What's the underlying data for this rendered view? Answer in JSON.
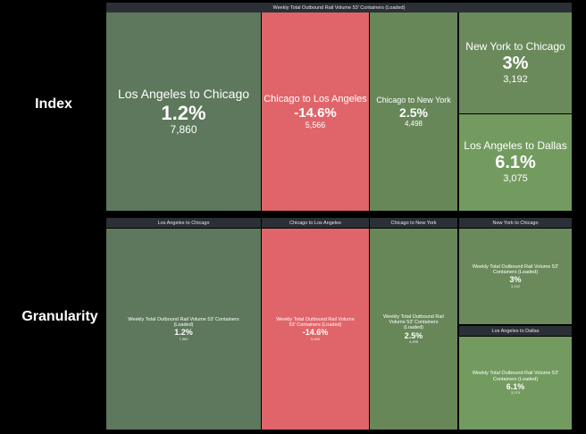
{
  "index": {
    "label": "Index",
    "title": "Weekly Total Outbound Rail Volume 53' Containers (Loaded)",
    "tiles": [
      {
        "name": "Los Angeles to Chicago",
        "change": "1.2%",
        "volume": "7,860"
      },
      {
        "name": "Chicago to Los Angeles",
        "change": "-14.6%",
        "volume": "5,566"
      },
      {
        "name": "Chicago to New York",
        "change": "2.5%",
        "volume": "4,498"
      },
      {
        "name": "New York to Chicago",
        "change": "3%",
        "volume": "3,192"
      },
      {
        "name": "Los Angeles to Dallas",
        "change": "6.1%",
        "volume": "3,075"
      }
    ]
  },
  "granularity": {
    "label": "Granularity",
    "tiles": [
      {
        "name": "Los Angeles to Chicago",
        "metric": "Weekly Total Outbound Rail Volume 53' Containers (Loaded)",
        "change": "1.2%",
        "volume": "7,860"
      },
      {
        "name": "Chicago to Los Angeles",
        "metric": "Weekly Total Outbound Rail Volume 53' Containers (Loaded)",
        "change": "-14.6%",
        "volume": "5,566"
      },
      {
        "name": "Chicago to New York",
        "metric": "Weekly Total Outbound Rail Volume 53' Containers (Loaded)",
        "change": "2.5%",
        "volume": "4,498"
      },
      {
        "name": "New York to Chicago",
        "metric": "Weekly Total Outbound Rail Volume 53' Containers (Loaded)",
        "change": "3%",
        "volume": "3,192"
      },
      {
        "name": "Los Angeles to Dallas",
        "metric": "Weekly Total Outbound Rail Volume 53' Containers (Loaded)",
        "change": "6.1%",
        "volume": "3,075"
      }
    ]
  }
}
